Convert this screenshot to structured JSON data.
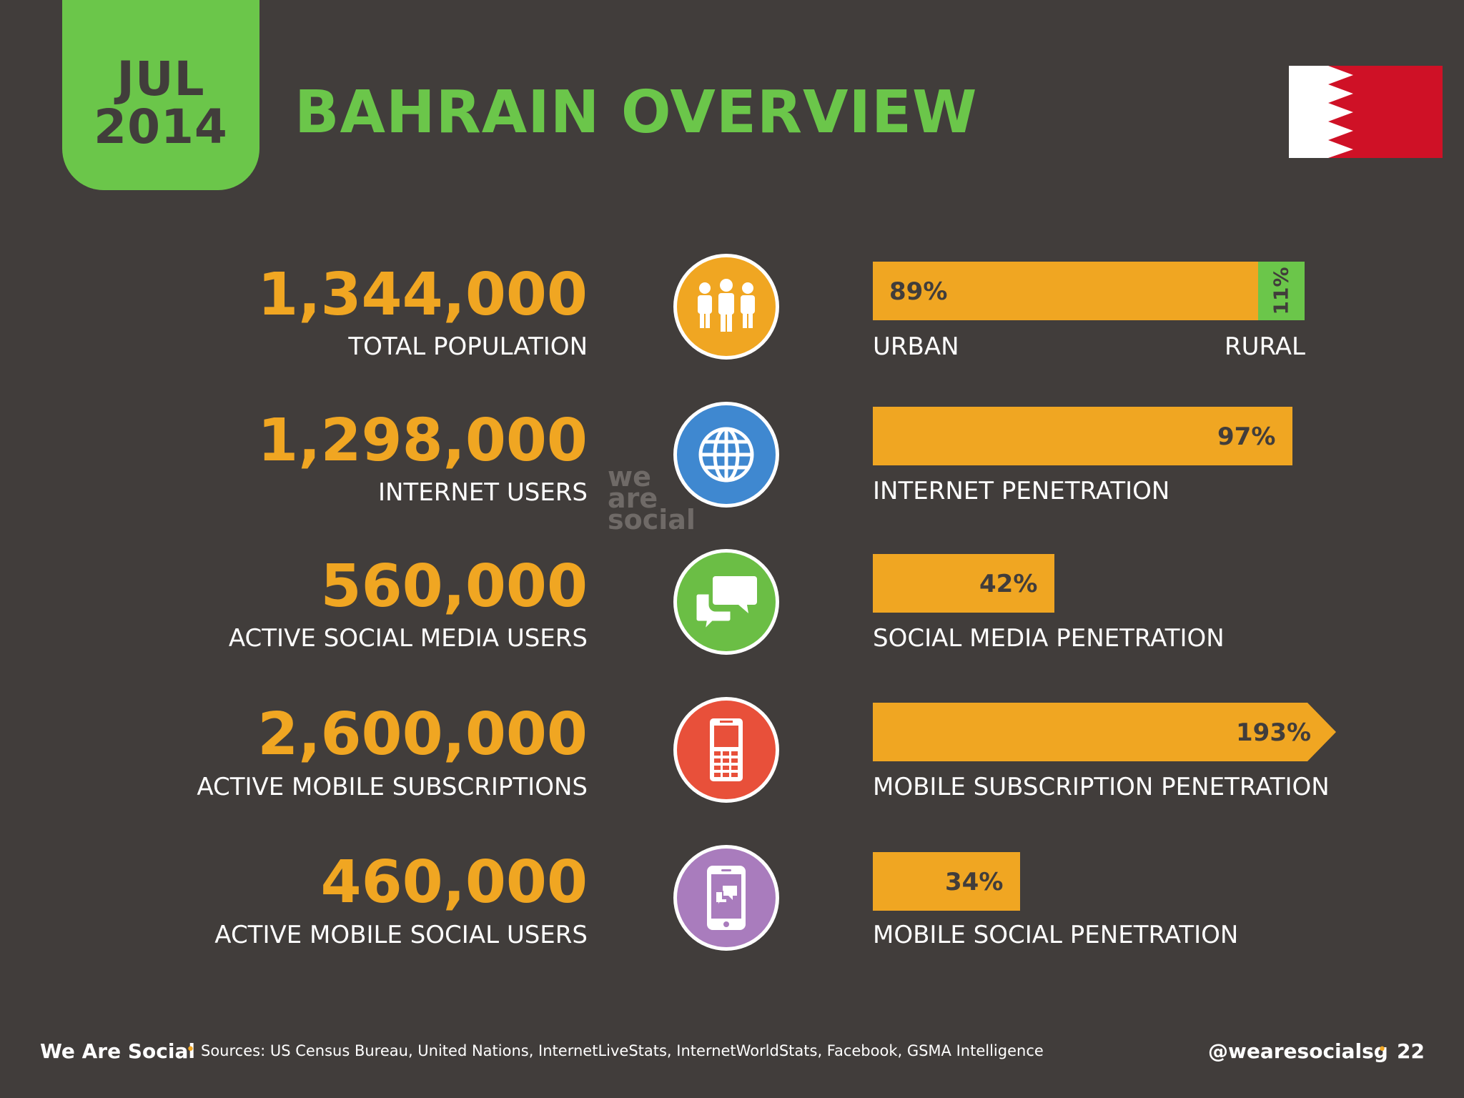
{
  "header": {
    "month": "JUL",
    "year": "2014",
    "title": "BAHRAIN OVERVIEW",
    "flag_icon": "bahrain-flag-icon"
  },
  "stats": [
    {
      "value": "1,344,000",
      "label": "TOTAL POPULATION",
      "icon": "people-icon",
      "color": "#f0a622"
    },
    {
      "value": "1,298,000",
      "label": "INTERNET USERS",
      "icon": "globe-icon",
      "color": "#3f88d0"
    },
    {
      "value": "560,000",
      "label": "ACTIVE SOCIAL MEDIA USERS",
      "icon": "chat-bubbles-icon",
      "color": "#6bbe45"
    },
    {
      "value": "2,600,000",
      "label": "ACTIVE MOBILE SUBSCRIPTIONS",
      "icon": "mobile-phone-icon",
      "color": "#e8503a"
    },
    {
      "value": "460,000",
      "label": "ACTIVE MOBILE SOCIAL USERS",
      "icon": "smartphone-chat-icon",
      "color": "#a97cbd"
    }
  ],
  "bars": {
    "population": {
      "urban_pct": "89%",
      "rural_pct": "11%",
      "urban_label": "URBAN",
      "rural_label": "RURAL",
      "urban_value": 89,
      "rural_value": 11
    },
    "internet": {
      "pct": "97%",
      "label": "INTERNET PENETRATION",
      "value": 97
    },
    "social": {
      "pct": "42%",
      "label": "SOCIAL MEDIA PENETRATION",
      "value": 42
    },
    "mobile": {
      "pct": "193%",
      "label": "MOBILE SUBSCRIPTION PENETRATION",
      "value": 193
    },
    "mobile_social": {
      "pct": "34%",
      "label": "MOBILE SOCIAL PENETRATION",
      "value": 34
    }
  },
  "watermark": [
    "we",
    "are",
    "social"
  ],
  "footer": {
    "brand": "We Are Social",
    "sources": "Sources: US Census Bureau, United Nations, InternetLiveStats, InternetWorldStats, Facebook, GSMA Intelligence",
    "handle": "@wearesocialsg",
    "page": "22"
  },
  "colors": {
    "background": "#413d3b",
    "accent_green": "#6bc64a",
    "accent_orange": "#f0a622",
    "flag_red": "#cf1126"
  }
}
